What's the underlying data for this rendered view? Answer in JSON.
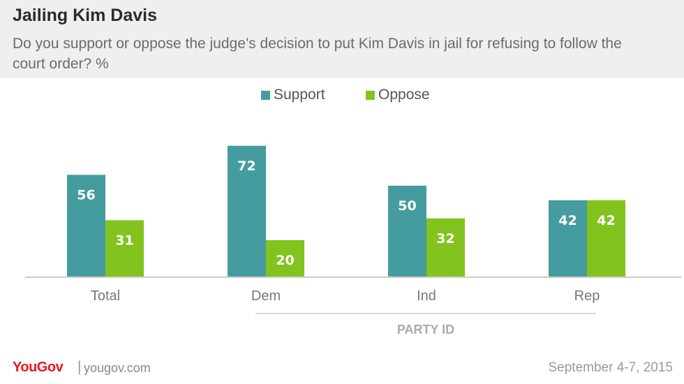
{
  "header": {
    "title": "Jailing Kim Davis",
    "subtitle": "Do you support or oppose the judge’s decision to put Kim Davis in jail for refusing to follow the court order? %"
  },
  "footer": {
    "logo": "YouGov",
    "separator": "|",
    "url": "yougov.com",
    "date": "September 4-7, 2015"
  },
  "chart_data": {
    "type": "bar",
    "categories": [
      "Total",
      "Dem",
      "Ind",
      "Rep"
    ],
    "series": [
      {
        "name": "Support",
        "color": "#459c9f",
        "values": [
          56,
          72,
          50,
          42
        ]
      },
      {
        "name": "Oppose",
        "color": "#82c31e",
        "values": [
          31,
          20,
          32,
          42
        ]
      }
    ],
    "group_label": "PARTY ID",
    "group_categories": [
      "Dem",
      "Ind",
      "Rep"
    ],
    "legend_position": "top-center",
    "ylim": [
      0,
      72
    ],
    "grid": false
  }
}
